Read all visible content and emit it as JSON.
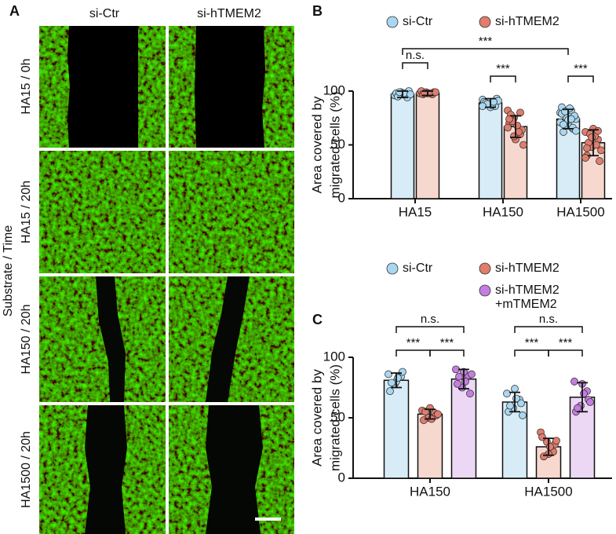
{
  "panel_a": {
    "label": "A",
    "columns": [
      "si-Ctr",
      "si-hTMEM2"
    ],
    "rows": [
      "HA15 / 0h",
      "HA15 / 20h",
      "HA150 / 20h",
      "HA1500 / 20h"
    ],
    "axis_label": "Substrate / Time"
  },
  "chart_data": [
    {
      "type": "bar",
      "panel": "B",
      "ylabel": [
        "Area covered by",
        "migrated cells (%)"
      ],
      "categories": [
        "HA15",
        "HA150",
        "HA1500"
      ],
      "ylim": [
        0,
        100
      ],
      "yticks": [
        0,
        50,
        100
      ],
      "series": [
        {
          "name": "si-Ctr",
          "color": "#d8ecf8",
          "point_color": "#a9d7f0",
          "values": [
            97,
            89,
            74
          ],
          "errors": [
            3,
            4,
            9
          ],
          "points": [
            [
              96,
              99,
              94,
              98,
              97,
              100,
              95,
              98,
              97,
              99
            ],
            [
              92,
              88,
              86,
              90,
              85,
              93,
              89,
              87,
              91,
              88,
              90,
              86
            ],
            [
              80,
              72,
              65,
              85,
              70,
              76,
              62,
              78,
              74,
              68,
              82,
              71,
              75,
              66,
              79,
              73,
              77,
              69,
              84,
              63,
              81,
              74
            ]
          ]
        },
        {
          "name": "si-hTMEM2",
          "color": "#f7d8cf",
          "point_color": "#e07d6c",
          "values": [
            98,
            67,
            52
          ],
          "errors": [
            2,
            10,
            12
          ],
          "points": [
            [
              98,
              99,
              97,
              100,
              98,
              99,
              97,
              98,
              99,
              98
            ],
            [
              82,
              75,
              60,
              70,
              55,
              64,
              78,
              68,
              50,
              72,
              62,
              66,
              58,
              80,
              74
            ],
            [
              62,
              48,
              55,
              40,
              65,
              35,
              52,
              58,
              45,
              60,
              50,
              38,
              57,
              63,
              47
            ]
          ]
        }
      ],
      "annotations": [
        "***",
        "n.s.",
        "***",
        "***"
      ]
    },
    {
      "type": "bar",
      "panel": "C",
      "ylabel": [
        "Area covered by",
        "migrated cells (%)"
      ],
      "categories": [
        "HA150",
        "HA1500"
      ],
      "ylim": [
        0,
        100
      ],
      "yticks": [
        0,
        50,
        100
      ],
      "series": [
        {
          "name": "si-Ctr",
          "color": "#d8ecf8",
          "point_color": "#a9d7f0",
          "values": [
            81,
            63
          ],
          "errors": [
            6,
            8
          ],
          "points": [
            [
              86,
              78,
              84,
              72,
              80,
              88,
              79,
              83
            ],
            [
              70,
              58,
              65,
              55,
              74,
              62,
              60,
              66,
              52
            ]
          ]
        },
        {
          "name": "si-hTMEM2",
          "color": "#f7d8cf",
          "point_color": "#e07d6c",
          "values": [
            53,
            26
          ],
          "errors": [
            4,
            7
          ],
          "points": [
            [
              56,
              50,
              54,
              48,
              58,
              52,
              55,
              49,
              53
            ],
            [
              38,
              30,
              22,
              34,
              20,
              28,
              18,
              26,
              31
            ]
          ]
        },
        {
          "name": "si-hTMEM2 +mTMEM2",
          "color": "#ecd8f5",
          "point_color": "#c57ee0",
          "values": [
            82,
            67
          ],
          "errors": [
            8,
            12
          ],
          "points": [
            [
              90,
              75,
              85,
              78,
              88,
              70,
              84,
              80,
              86
            ],
            [
              80,
              60,
              72,
              55,
              78,
              65,
              58,
              70,
              63
            ]
          ]
        }
      ],
      "annotations": [
        "n.s.",
        "***",
        "***",
        "n.s.",
        "***",
        "***"
      ]
    }
  ]
}
